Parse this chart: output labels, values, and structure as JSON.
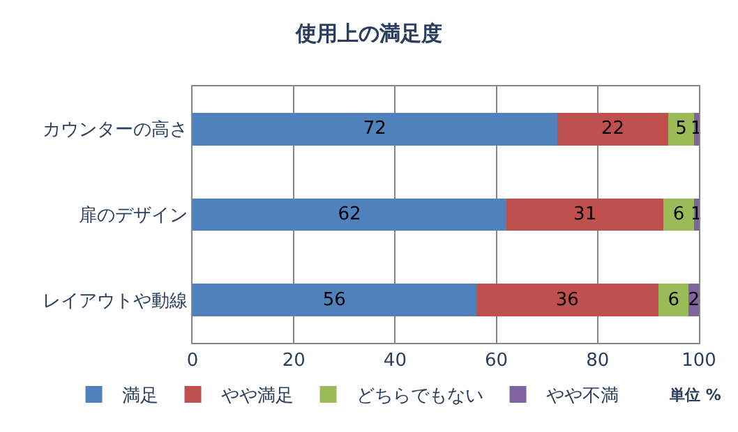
{
  "chart_data": {
    "type": "bar",
    "title": "使用上の満足度",
    "orientation": "horizontal",
    "stacked": true,
    "categories": [
      "カウンターの高さ",
      "扉のデザイン",
      "レイアウトや動線"
    ],
    "series": [
      {
        "name": "満足",
        "color": "#4f81bd",
        "values": [
          72,
          62,
          56
        ]
      },
      {
        "name": "やや満足",
        "color": "#c0504d",
        "values": [
          22,
          31,
          36
        ]
      },
      {
        "name": "どちらでもない",
        "color": "#9bbb59",
        "values": [
          5,
          6,
          6
        ]
      },
      {
        "name": "やや不満",
        "color": "#8064a2",
        "values": [
          1,
          1,
          2
        ]
      }
    ],
    "xlim": [
      0,
      100
    ],
    "xticks": [
      0,
      20,
      40,
      60,
      80,
      100
    ],
    "grid": "x",
    "legend": "bottom",
    "data_labels": true,
    "annotations": [
      "単位 %"
    ]
  }
}
